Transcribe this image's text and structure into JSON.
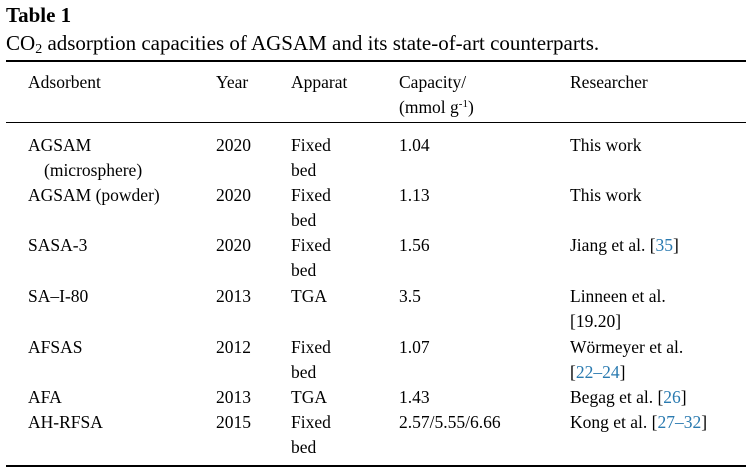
{
  "table": {
    "label": "Table 1",
    "caption": {
      "pre": "CO",
      "sub": "2",
      "post": " adsorption capacities of AGSAM and its state-of-art counterparts."
    },
    "headers": {
      "adsorbent": "Adsorbent",
      "year": "Year",
      "apparat": "Apparat",
      "capacity_line1": "Capacity/",
      "capacity_unit_pre": "(mmol g",
      "capacity_unit_sup": "-1",
      "capacity_unit_post": ")",
      "researcher": "Researcher"
    },
    "rows": [
      {
        "adsorbent": "AGSAM",
        "adsorbent_cont": "(microsphere)",
        "year": "2020",
        "apparat_1": "Fixed",
        "apparat_2": "bed",
        "capacity": "1.04",
        "researcher": "This work",
        "ref": ""
      },
      {
        "adsorbent": "AGSAM (powder)",
        "adsorbent_cont": "",
        "year": "2020",
        "apparat_1": "Fixed",
        "apparat_2": "bed",
        "capacity": "1.13",
        "researcher": "This work",
        "ref": ""
      },
      {
        "adsorbent": "SASA-3",
        "adsorbent_cont": "",
        "year": "2020",
        "apparat_1": "Fixed",
        "apparat_2": "bed",
        "capacity": "1.56",
        "researcher": "Jiang et al. [",
        "ref": "35",
        "ref_close": "]"
      },
      {
        "adsorbent": "SA–I-80",
        "adsorbent_cont": "",
        "year": "2013",
        "apparat_1": "TGA",
        "apparat_2": "",
        "capacity": "3.5",
        "researcher": "Linneen et al.",
        "researcher_2": "[19.20]",
        "ref": ""
      },
      {
        "adsorbent": "AFSAS",
        "adsorbent_cont": "",
        "year": "2012",
        "apparat_1": "Fixed",
        "apparat_2": "bed",
        "capacity": "1.07",
        "researcher": "Wörmeyer et al.",
        "researcher_2_pre": "[",
        "ref": "22–24",
        "ref_close": "]"
      },
      {
        "adsorbent": "AFA",
        "adsorbent_cont": "",
        "year": "2013",
        "apparat_1": "TGA",
        "apparat_2": "",
        "capacity": "1.43",
        "researcher": "Begag et al. [",
        "ref": "26",
        "ref_close": "]"
      },
      {
        "adsorbent": "AH-RFSA",
        "adsorbent_cont": "",
        "year": "2015",
        "apparat_1": "Fixed",
        "apparat_2": "bed",
        "capacity": "2.57/5.55/6.66",
        "researcher": "Kong et al. [",
        "ref": "27–32",
        "ref_close": "]"
      }
    ]
  }
}
